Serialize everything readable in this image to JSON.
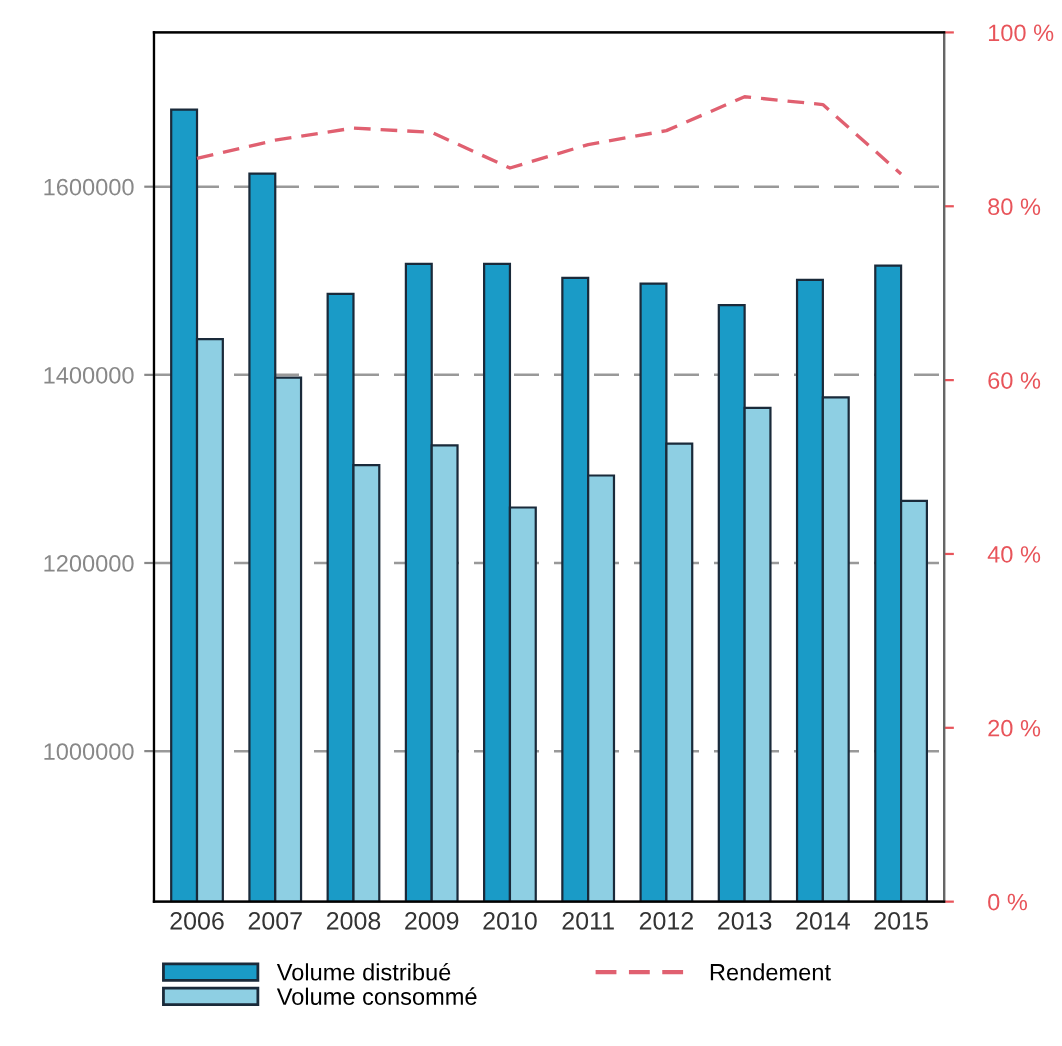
{
  "chart_data": {
    "type": "bar",
    "categories": [
      "2006",
      "2007",
      "2008",
      "2009",
      "2010",
      "2011",
      "2012",
      "2013",
      "2014",
      "2015"
    ],
    "series": [
      {
        "name": "Volume distribué",
        "color": "#1a9bc7",
        "values": [
          1682000,
          1614000,
          1486000,
          1518000,
          1518000,
          1503000,
          1497000,
          1474000,
          1501000,
          1516000
        ]
      },
      {
        "name": "Volume consommé",
        "color": "#8ecfe3",
        "values": [
          1438000,
          1397000,
          1304000,
          1325000,
          1259000,
          1293000,
          1327000,
          1365000,
          1376000,
          1266000
        ]
      },
      {
        "name": "Rendement",
        "type": "line",
        "axis": "y2",
        "color": "#e06070",
        "line_style": "dashed",
        "values": [
          85.5,
          87.6,
          89,
          88.5,
          84.4,
          87.1,
          88.7,
          92.6,
          91.7,
          83.7
        ]
      }
    ],
    "ylim": [
      840000,
      1764000
    ],
    "yticks": [
      1000000,
      1200000,
      1400000,
      1600000
    ],
    "y2lim": [
      0,
      100
    ],
    "y2ticks": [
      {
        "value": 0,
        "label": "0 %"
      },
      {
        "value": 20,
        "label": "20 %"
      },
      {
        "value": 40,
        "label": "40 %"
      },
      {
        "value": 60,
        "label": "60 %"
      },
      {
        "value": 80,
        "label": "80 %"
      },
      {
        "value": 100,
        "label": "100 %"
      }
    ],
    "grid": "y",
    "legend": "bottom"
  }
}
